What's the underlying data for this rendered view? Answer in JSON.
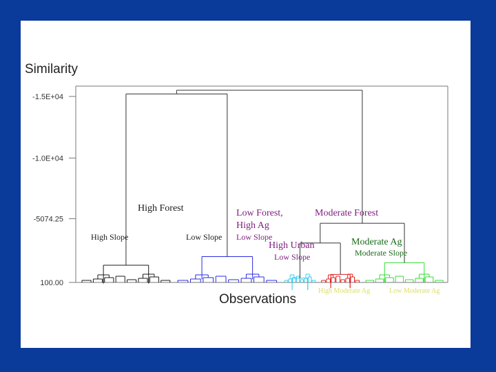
{
  "chart_data": {
    "type": "dendrogram",
    "title": "",
    "ylabel": "Similarity",
    "xlabel": "Observations",
    "yticks": [
      "-1.5E+04",
      "-1.0E+04",
      "-5074.25",
      "100.00"
    ],
    "y_tick_values": [
      -15000,
      -10000,
      -5074.25,
      100
    ],
    "ylim": [
      -16000,
      100
    ],
    "grid": false,
    "clusters": [
      {
        "name": "black",
        "color": "#1a1a1a",
        "x_range": [
          0,
          26
        ],
        "merge_height": -1300
      },
      {
        "name": "blue",
        "color": "#2a2ae0",
        "x_range": [
          26,
          55
        ],
        "merge_height": -2000
      },
      {
        "name": "cyan",
        "color": "#33ccee",
        "x_range": [
          55,
          65
        ],
        "merge_height": -250
      },
      {
        "name": "red",
        "color": "#e02020",
        "x_range": [
          65,
          77
        ],
        "merge_height": -550
      },
      {
        "name": "green",
        "color": "#33dd33",
        "x_range": [
          77,
          100
        ],
        "merge_height": -1500
      }
    ],
    "merges": [
      {
        "left": "black",
        "right": "blue",
        "height": -15200
      },
      {
        "left": "cyan",
        "right": "red",
        "height": -3100
      },
      {
        "left": "cyan+red",
        "right": "green",
        "height": -4700
      },
      {
        "left": "black+blue",
        "right": "cyan+red+green",
        "height": -15500
      }
    ]
  },
  "annotations": [
    {
      "text": "High Forest",
      "color": "#1a1a1a"
    },
    {
      "text": "High Slope",
      "color": "#1a1a1a"
    },
    {
      "text": "Low Slope",
      "color": "#1a1a1a"
    },
    {
      "text": "Low Forest,",
      "color": "#802080"
    },
    {
      "text": "High Ag",
      "color": "#802080"
    },
    {
      "text": "Low Slope",
      "color": "#802080"
    },
    {
      "text": "High Urban",
      "color": "#802080"
    },
    {
      "text": "Low Slope",
      "color": "#802080"
    },
    {
      "text": "Moderate Forest",
      "color": "#802080"
    },
    {
      "text": "Moderate Ag",
      "color": "#1a6a1a"
    },
    {
      "text": "Moderate Slope",
      "color": "#1a6a1a"
    },
    {
      "text": "High Moderate Ag",
      "color": "#dddd66"
    },
    {
      "text": "Low Moderate Ag",
      "color": "#dddd66"
    }
  ]
}
